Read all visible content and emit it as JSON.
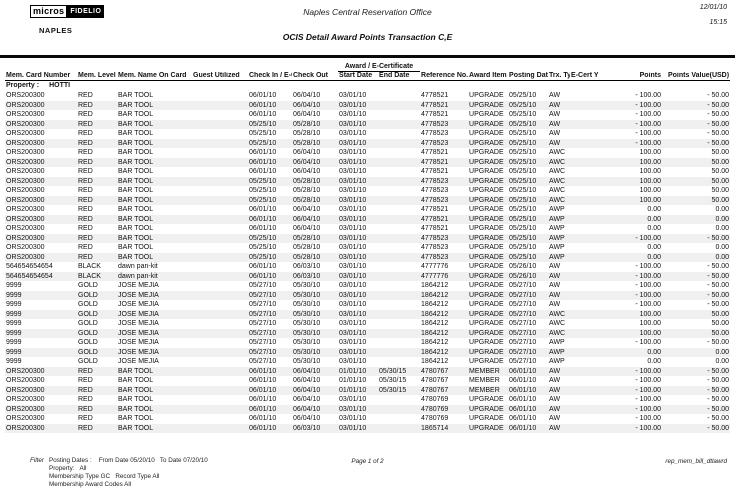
{
  "colors": {
    "stripe": "#f0f0f0",
    "rule": "#0a0a0a"
  },
  "logo": {
    "micros": "micros",
    "fidelio": "FIDELIO",
    "property_code": "NAPLES"
  },
  "header": {
    "office": "Naples Central Reservation Office",
    "date": "12/01/10",
    "time": "15:15",
    "title": "OCIS Detail Award Points Transaction C,E"
  },
  "table": {
    "group_header": "Award / E-Certificate",
    "columns": [
      "Mem. Card\nNumber",
      "Mem.\nLevel",
      "Mem. Name\nOn Card",
      "Guest Utilized",
      "Check In /\nE-Certificate\nDate Used",
      "Check Out",
      "Start\nDate",
      "End\nDate",
      "Reference No.",
      "Award\nItem",
      "Posting\nDate",
      "Trx.\nType",
      "E-Cert\nY/N",
      "Points",
      "Points Value(USD)"
    ],
    "property_label": "Property :",
    "property_value": "HOTTI",
    "rows": [
      [
        "ORS200300",
        "RED",
        "BAR TOOL",
        "",
        "06/01/10",
        "06/04/10",
        "03/01/10",
        "",
        "4778521",
        "UPGRADE",
        "05/25/10",
        "AW",
        "",
        "- 100.00",
        "- 50.00"
      ],
      [
        "ORS200300",
        "RED",
        "BAR TOOL",
        "",
        "06/01/10",
        "06/04/10",
        "03/01/10",
        "",
        "4778521",
        "UPGRADE",
        "05/25/10",
        "AW",
        "",
        "- 100.00",
        "- 50.00"
      ],
      [
        "ORS200300",
        "RED",
        "BAR TOOL",
        "",
        "06/01/10",
        "06/04/10",
        "03/01/10",
        "",
        "4778521",
        "UPGRADE",
        "05/25/10",
        "AW",
        "",
        "- 100.00",
        "- 50.00"
      ],
      [
        "ORS200300",
        "RED",
        "BAR TOOL",
        "",
        "05/25/10",
        "05/28/10",
        "03/01/10",
        "",
        "4778523",
        "UPGRADE",
        "05/25/10",
        "AW",
        "",
        "- 100.00",
        "- 50.00"
      ],
      [
        "ORS200300",
        "RED",
        "BAR TOOL",
        "",
        "05/25/10",
        "05/28/10",
        "03/01/10",
        "",
        "4778523",
        "UPGRADE",
        "05/25/10",
        "AW",
        "",
        "- 100.00",
        "- 50.00"
      ],
      [
        "ORS200300",
        "RED",
        "BAR TOOL",
        "",
        "05/25/10",
        "05/28/10",
        "03/01/10",
        "",
        "4778523",
        "UPGRADE",
        "05/25/10",
        "AW",
        "",
        "- 100.00",
        "- 50.00"
      ],
      [
        "ORS200300",
        "RED",
        "BAR TOOL",
        "",
        "06/01/10",
        "06/04/10",
        "03/01/10",
        "",
        "4778521",
        "UPGRADE",
        "05/25/10",
        "AWC",
        "",
        "100.00",
        "50.00"
      ],
      [
        "ORS200300",
        "RED",
        "BAR TOOL",
        "",
        "06/01/10",
        "06/04/10",
        "03/01/10",
        "",
        "4778521",
        "UPGRADE",
        "05/25/10",
        "AWC",
        "",
        "100.00",
        "50.00"
      ],
      [
        "ORS200300",
        "RED",
        "BAR TOOL",
        "",
        "06/01/10",
        "06/04/10",
        "03/01/10",
        "",
        "4778521",
        "UPGRADE",
        "05/25/10",
        "AWC",
        "",
        "100.00",
        "50.00"
      ],
      [
        "ORS200300",
        "RED",
        "BAR TOOL",
        "",
        "05/25/10",
        "05/28/10",
        "03/01/10",
        "",
        "4778523",
        "UPGRADE",
        "05/25/10",
        "AWC",
        "",
        "100.00",
        "50.00"
      ],
      [
        "ORS200300",
        "RED",
        "BAR TOOL",
        "",
        "05/25/10",
        "05/28/10",
        "03/01/10",
        "",
        "4778523",
        "UPGRADE",
        "05/25/10",
        "AWC",
        "",
        "100.00",
        "50.00"
      ],
      [
        "ORS200300",
        "RED",
        "BAR TOOL",
        "",
        "05/25/10",
        "05/28/10",
        "03/01/10",
        "",
        "4778523",
        "UPGRADE",
        "05/25/10",
        "AWC",
        "",
        "100.00",
        "50.00"
      ],
      [
        "ORS200300",
        "RED",
        "BAR TOOL",
        "",
        "06/01/10",
        "06/04/10",
        "03/01/10",
        "",
        "4778521",
        "UPGRADE",
        "05/25/10",
        "AWP",
        "",
        "0.00",
        "0.00"
      ],
      [
        "ORS200300",
        "RED",
        "BAR TOOL",
        "",
        "06/01/10",
        "06/04/10",
        "03/01/10",
        "",
        "4778521",
        "UPGRADE",
        "05/25/10",
        "AWP",
        "",
        "0.00",
        "0.00"
      ],
      [
        "ORS200300",
        "RED",
        "BAR TOOL",
        "",
        "06/01/10",
        "06/04/10",
        "03/01/10",
        "",
        "4778521",
        "UPGRADE",
        "05/25/10",
        "AWP",
        "",
        "0.00",
        "0.00"
      ],
      [
        "ORS200300",
        "RED",
        "BAR TOOL",
        "",
        "05/25/10",
        "05/28/10",
        "03/01/10",
        "",
        "4778523",
        "UPGRADE",
        "05/25/10",
        "AWP",
        "",
        "- 100.00",
        "- 50.00"
      ],
      [
        "ORS200300",
        "RED",
        "BAR TOOL",
        "",
        "05/25/10",
        "05/28/10",
        "03/01/10",
        "",
        "4778523",
        "UPGRADE",
        "05/25/10",
        "AWP",
        "",
        "0.00",
        "0.00"
      ],
      [
        "ORS200300",
        "RED",
        "BAR TOOL",
        "",
        "05/25/10",
        "05/28/10",
        "03/01/10",
        "",
        "4778523",
        "UPGRADE",
        "05/25/10",
        "AWP",
        "",
        "0.00",
        "0.00"
      ],
      [
        "564654654654",
        "BLACK",
        "dawn pan-kit",
        "",
        "06/01/10",
        "06/03/10",
        "03/01/10",
        "",
        "4777776",
        "UPGRADE",
        "05/26/10",
        "AW",
        "",
        "- 100.00",
        "- 50.00"
      ],
      [
        "564654654654",
        "BLACK",
        "dawn pan-kit",
        "",
        "06/01/10",
        "06/03/10",
        "03/01/10",
        "",
        "4777776",
        "UPGRADE",
        "05/26/10",
        "AW",
        "",
        "- 100.00",
        "- 50.00"
      ],
      [
        "9999",
        "GOLD",
        "JOSE MEJIA",
        "",
        "05/27/10",
        "05/30/10",
        "03/01/10",
        "",
        "1864212",
        "UPGRADE",
        "05/27/10",
        "AW",
        "",
        "- 100.00",
        "- 50.00"
      ],
      [
        "9999",
        "GOLD",
        "JOSE MEJIA",
        "",
        "05/27/10",
        "05/30/10",
        "03/01/10",
        "",
        "1864212",
        "UPGRADE",
        "05/27/10",
        "AW",
        "",
        "- 100.00",
        "- 50.00"
      ],
      [
        "9999",
        "GOLD",
        "JOSE MEJIA",
        "",
        "05/27/10",
        "05/30/10",
        "03/01/10",
        "",
        "1864212",
        "UPGRADE",
        "05/27/10",
        "AW",
        "",
        "- 100.00",
        "- 50.00"
      ],
      [
        "9999",
        "GOLD",
        "JOSE MEJIA",
        "",
        "05/27/10",
        "05/30/10",
        "03/01/10",
        "",
        "1864212",
        "UPGRADE",
        "05/27/10",
        "AWC",
        "",
        "100.00",
        "50.00"
      ],
      [
        "9999",
        "GOLD",
        "JOSE MEJIA",
        "",
        "05/27/10",
        "05/30/10",
        "03/01/10",
        "",
        "1864212",
        "UPGRADE",
        "05/27/10",
        "AWC",
        "",
        "100.00",
        "50.00"
      ],
      [
        "9999",
        "GOLD",
        "JOSE MEJIA",
        "",
        "05/27/10",
        "05/30/10",
        "03/01/10",
        "",
        "1864212",
        "UPGRADE",
        "05/27/10",
        "AWC",
        "",
        "100.00",
        "50.00"
      ],
      [
        "9999",
        "GOLD",
        "JOSE MEJIA",
        "",
        "05/27/10",
        "05/30/10",
        "03/01/10",
        "",
        "1864212",
        "UPGRADE",
        "05/27/10",
        "AWP",
        "",
        "- 100.00",
        "- 50.00"
      ],
      [
        "9999",
        "GOLD",
        "JOSE MEJIA",
        "",
        "05/27/10",
        "05/30/10",
        "03/01/10",
        "",
        "1864212",
        "UPGRADE",
        "05/27/10",
        "AWP",
        "",
        "0.00",
        "0.00"
      ],
      [
        "9999",
        "GOLD",
        "JOSE MEJIA",
        "",
        "05/27/10",
        "05/30/10",
        "03/01/10",
        "",
        "1864212",
        "UPGRADE",
        "05/27/10",
        "AWP",
        "",
        "0.00",
        "0.00"
      ],
      [
        "ORS200300",
        "RED",
        "BAR TOOL",
        "",
        "06/01/10",
        "06/04/10",
        "01/01/10",
        "05/30/15",
        "4780767",
        "MEMBER",
        "06/01/10",
        "AW",
        "",
        "- 100.00",
        "- 50.00"
      ],
      [
        "ORS200300",
        "RED",
        "BAR TOOL",
        "",
        "06/01/10",
        "06/04/10",
        "01/01/10",
        "05/30/15",
        "4780767",
        "MEMBER",
        "06/01/10",
        "AW",
        "",
        "- 100.00",
        "- 50.00"
      ],
      [
        "ORS200300",
        "RED",
        "BAR TOOL",
        "",
        "06/01/10",
        "06/04/10",
        "01/01/10",
        "05/30/15",
        "4780767",
        "MEMBER",
        "06/01/10",
        "AW",
        "",
        "- 100.00",
        "- 50.00"
      ],
      [
        "ORS200300",
        "RED",
        "BAR TOOL",
        "",
        "06/01/10",
        "06/04/10",
        "03/01/10",
        "",
        "4780769",
        "UPGRADE",
        "06/01/10",
        "AW",
        "",
        "- 100.00",
        "- 50.00"
      ],
      [
        "ORS200300",
        "RED",
        "BAR TOOL",
        "",
        "06/01/10",
        "06/04/10",
        "03/01/10",
        "",
        "4780769",
        "UPGRADE",
        "06/01/10",
        "AW",
        "",
        "- 100.00",
        "- 50.00"
      ],
      [
        "ORS200300",
        "RED",
        "BAR TOOL",
        "",
        "06/01/10",
        "06/04/10",
        "03/01/10",
        "",
        "4780769",
        "UPGRADE",
        "06/01/10",
        "AW",
        "",
        "- 100.00",
        "- 50.00"
      ],
      [
        "ORS200300",
        "RED",
        "BAR TOOL",
        "",
        "06/01/10",
        "06/03/10",
        "03/01/10",
        "",
        "1865714",
        "UPGRADE",
        "06/01/10",
        "AW",
        "",
        "- 100.00",
        "- 50.00"
      ]
    ]
  },
  "footer": {
    "filter_label": "Filter",
    "lines": [
      "Posting Dates :    From Date 05/20/10   To Date 07/20/10",
      "Property:   All",
      "Membership Type GC   Record Type All",
      "Membership Award Codes All"
    ],
    "page": "Page 1 of 2",
    "report_id": "rep_mem_bill_dtlawrd"
  }
}
